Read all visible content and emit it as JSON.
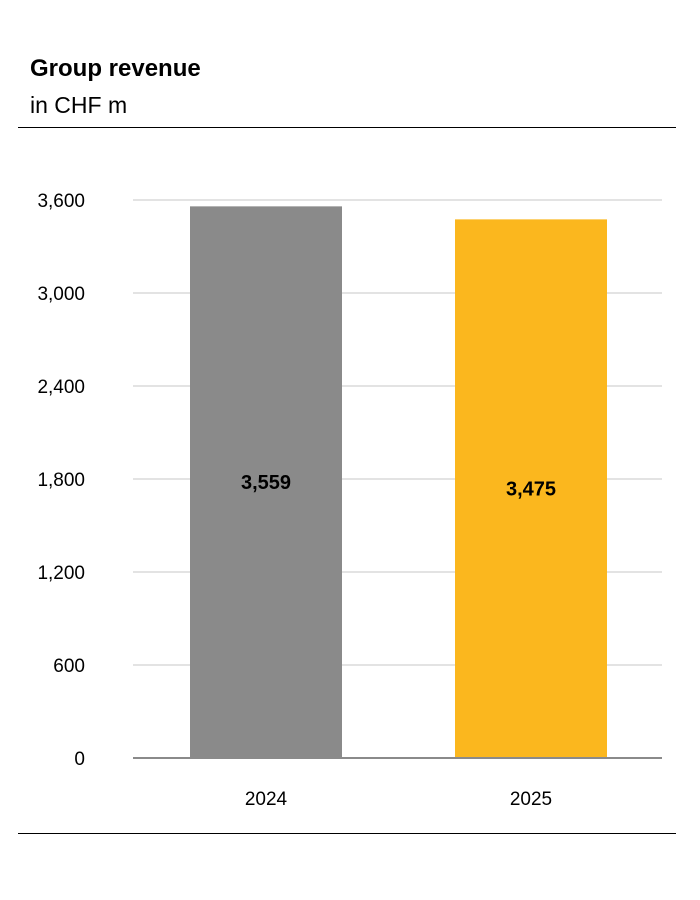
{
  "chart_data": {
    "type": "bar",
    "title": "Group revenue",
    "subtitle": "in CHF m",
    "categories": [
      "2024",
      "2025"
    ],
    "values": [
      3559,
      3475
    ],
    "value_labels": [
      "3,559",
      "3,475"
    ],
    "bar_colors": [
      "#8a8a8a",
      "#fbb71e"
    ],
    "ylim": [
      0,
      3600
    ],
    "yticks": [
      0,
      600,
      1200,
      1800,
      2400,
      3000,
      3600
    ],
    "ytick_labels": [
      "0",
      "600",
      "1,200",
      "1,800",
      "2,400",
      "3,000",
      "3,600"
    ],
    "grid": true,
    "legend": false,
    "colors": {
      "grid": "#e3e3e3",
      "axis": "#8a8a8a",
      "rule": "#000000"
    }
  }
}
